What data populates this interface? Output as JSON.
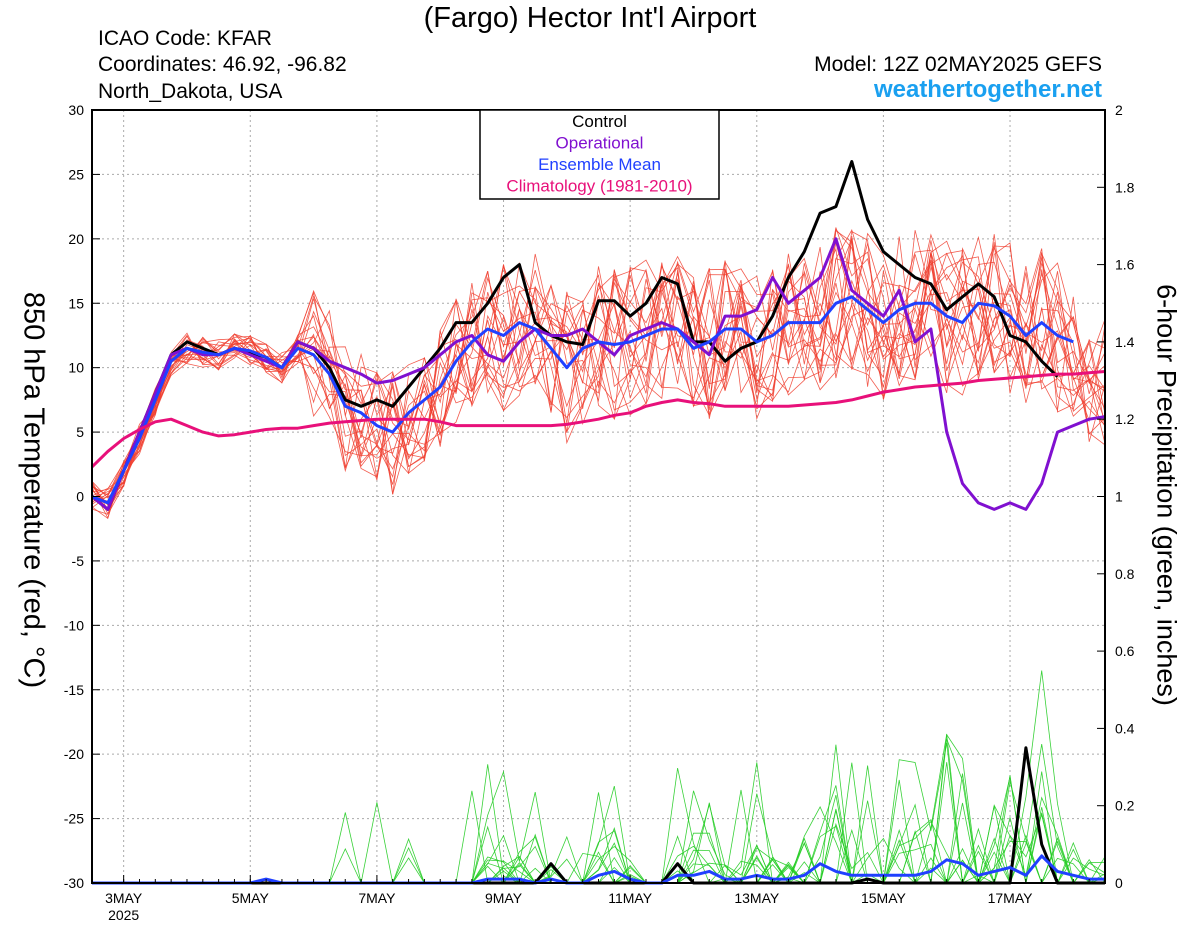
{
  "header": {
    "title": "(Fargo) Hector Int'l Airport",
    "icao": "ICAO Code: KFAR",
    "coordinates": "Coordinates: 46.92, -96.82",
    "location": "North_Dakota, USA",
    "model": "Model: 12Z 02MAY2025 GEFS",
    "site": "weathertogether.net"
  },
  "colors": {
    "ensemble_member": "#f04030",
    "control": "#000000",
    "operational": "#8010d0",
    "ensemble_mean": "#2040ff",
    "climatology": "#e8107a",
    "precip_member": "#22cc22",
    "site_link": "#1aa0f0"
  },
  "chart_data": {
    "type": "line",
    "xlabel": "",
    "ylabel": "850 hPa Temperature (red, °C)",
    "y2label": "6-hour Precipitation (green, inches)",
    "ylim": [
      -30,
      30
    ],
    "y2lim": [
      0,
      2
    ],
    "yticks": [
      "30",
      "25",
      "20",
      "15",
      "10",
      "5",
      "0",
      "-5",
      "-10",
      "-15",
      "-20",
      "-25",
      "-30"
    ],
    "y2ticks": [
      "2",
      "1.8",
      "1.6",
      "1.4",
      "1.2",
      "1",
      "0.8",
      "0.6",
      "0.4",
      "0.2",
      "0"
    ],
    "xlim": [
      2.5,
      18.5
    ],
    "xticks": [
      {
        "x": 3,
        "label": "3MAY"
      },
      {
        "x": 5,
        "label": "5MAY"
      },
      {
        "x": 7,
        "label": "7MAY"
      },
      {
        "x": 9,
        "label": "9MAY"
      },
      {
        "x": 11,
        "label": "11MAY"
      },
      {
        "x": 13,
        "label": "13MAY"
      },
      {
        "x": 15,
        "label": "15MAY"
      },
      {
        "x": 17,
        "label": "17MAY"
      }
    ],
    "year_label": "2025",
    "grid": true,
    "legend": {
      "placement": "top-center",
      "entries": [
        "Control",
        "Operational",
        "Ensemble Mean",
        "Climatology (1981-2010)"
      ]
    },
    "x_dates": [
      2.5,
      2.75,
      3,
      3.25,
      3.5,
      3.75,
      4,
      4.25,
      4.5,
      4.75,
      5,
      5.25,
      5.5,
      5.75,
      6,
      6.25,
      6.5,
      6.75,
      7,
      7.25,
      7.5,
      7.75,
      8,
      8.25,
      8.5,
      8.75,
      9,
      9.25,
      9.5,
      9.75,
      10,
      10.25,
      10.5,
      10.75,
      11,
      11.25,
      11.5,
      11.75,
      12,
      12.25,
      12.5,
      12.75,
      13,
      13.25,
      13.5,
      13.75,
      14,
      14.25,
      14.5,
      14.75,
      15,
      15.25,
      15.5,
      15.75,
      16,
      16.25,
      16.5,
      16.75,
      17,
      17.25,
      17.5,
      17.75,
      18,
      18.25,
      18.5
    ],
    "series": [
      {
        "name": "Control",
        "axis": "temp",
        "values": [
          0,
          -1,
          2,
          5,
          8,
          11,
          12,
          11.5,
          11,
          11.5,
          11.2,
          10.8,
          10,
          12,
          11.5,
          10,
          7.5,
          7,
          7.5,
          7,
          8.5,
          10,
          11.5,
          13.5,
          13.5,
          15,
          17,
          18,
          13.5,
          12.5,
          12,
          11.8,
          15.2,
          15.2,
          14,
          15,
          17,
          16.5,
          12,
          12,
          10.5,
          11.5,
          12,
          14,
          17,
          19,
          22,
          22.5,
          26,
          21.5,
          19,
          18,
          17,
          16.5,
          14.5,
          15.5,
          16.5,
          15.5,
          12.5,
          12,
          10.5,
          9.3,
          null,
          null,
          null
        ]
      },
      {
        "name": "Operational",
        "axis": "temp",
        "values": [
          0,
          -1,
          2,
          5,
          8,
          11,
          11.5,
          11,
          11,
          11.5,
          11,
          10.5,
          10,
          12,
          11.5,
          10.5,
          10,
          9.5,
          8.8,
          9,
          9.5,
          10,
          11,
          12,
          12.5,
          11,
          10.5,
          12,
          13,
          12.5,
          12.5,
          13,
          12,
          11,
          12.5,
          13,
          13.5,
          13,
          12,
          11,
          14,
          14,
          14.5,
          17,
          15,
          16,
          17,
          20,
          16,
          15,
          14,
          16,
          12,
          13,
          5,
          1,
          -0.5,
          -1,
          -0.5,
          -1,
          1,
          5,
          5.5,
          6,
          6.2
        ]
      },
      {
        "name": "Ensemble Mean",
        "axis": "temp",
        "values": [
          0,
          -0.5,
          2,
          4.5,
          7.5,
          10.5,
          11.5,
          11.2,
          11,
          11.5,
          11.3,
          10.8,
          10,
          11.5,
          11,
          9.5,
          7,
          6.5,
          5.5,
          5,
          6.5,
          7.5,
          8.5,
          10.5,
          12,
          13,
          12.5,
          13.5,
          13,
          11.5,
          10,
          11.5,
          12,
          11.8,
          12,
          12.5,
          13,
          13,
          11.5,
          12,
          13,
          13,
          12,
          12.5,
          13.5,
          13.5,
          13.5,
          15,
          15.5,
          14.5,
          13.5,
          14.5,
          15,
          15,
          14,
          13.5,
          15,
          14.8,
          14,
          12.5,
          13.5,
          12.5,
          12,
          null,
          null
        ]
      },
      {
        "name": "Climatology (1981-2010)",
        "axis": "temp",
        "values": [
          2.3,
          3.5,
          4.5,
          5.2,
          5.8,
          6,
          5.5,
          5,
          4.7,
          4.8,
          5,
          5.2,
          5.3,
          5.3,
          5.5,
          5.7,
          5.8,
          5.9,
          6,
          6,
          6,
          6,
          5.8,
          5.5,
          5.5,
          5.5,
          5.5,
          5.5,
          5.5,
          5.5,
          5.6,
          5.8,
          6,
          6.3,
          6.5,
          7,
          7.3,
          7.5,
          7.3,
          7.2,
          7,
          7,
          7,
          7,
          7,
          7.1,
          7.2,
          7.3,
          7.5,
          7.8,
          8.1,
          8.3,
          8.5,
          8.6,
          8.7,
          8.8,
          9,
          9.1,
          9.2,
          9.3,
          9.4,
          9.5,
          9.5,
          9.6,
          9.7
        ]
      },
      {
        "name": "Control",
        "axis": "precip",
        "values": [
          0,
          0,
          0,
          0,
          0,
          0,
          0,
          0,
          0,
          0,
          0,
          0,
          0,
          0,
          0,
          0,
          0,
          0,
          0,
          0,
          0,
          0,
          0,
          0,
          0,
          0,
          0,
          0,
          0,
          0.05,
          0,
          0,
          0,
          0,
          0,
          0,
          0,
          0.05,
          0,
          0,
          0,
          0,
          0,
          0,
          0,
          0,
          0,
          0,
          0,
          0.01,
          0,
          0,
          0,
          0,
          0,
          0,
          0,
          0,
          0,
          0.35,
          0.1,
          0,
          0,
          0,
          0
        ]
      },
      {
        "name": "Ensemble Mean",
        "axis": "precip",
        "values": [
          0,
          0,
          0,
          0,
          0,
          0,
          0,
          0,
          0,
          0,
          0,
          0.01,
          0,
          0,
          0,
          0,
          0,
          0,
          0,
          0,
          0,
          0,
          0,
          0,
          0,
          0.01,
          0.01,
          0.01,
          0,
          0.01,
          0,
          0,
          0.02,
          0.03,
          0.01,
          0,
          0,
          0.02,
          0.02,
          0.03,
          0.01,
          0.01,
          0.02,
          0.01,
          0.01,
          0.02,
          0.05,
          0.03,
          0.02,
          0.02,
          0.02,
          0.02,
          0.02,
          0.03,
          0.06,
          0.05,
          0.02,
          0.03,
          0.04,
          0.02,
          0.07,
          0.03,
          0.02,
          0.01,
          0.01
        ]
      }
    ]
  }
}
